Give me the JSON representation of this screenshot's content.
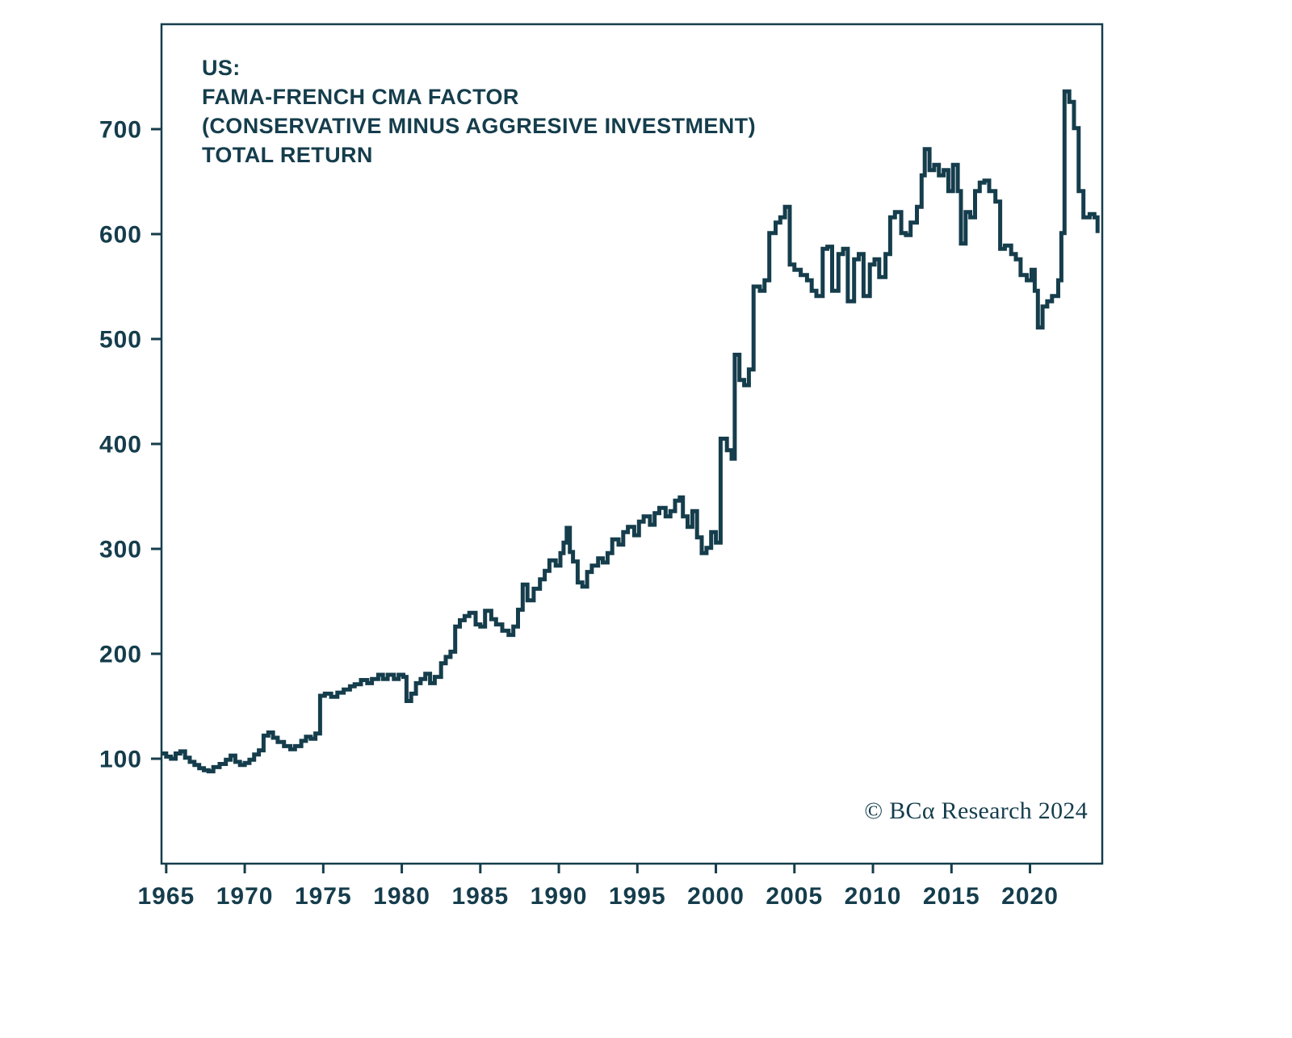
{
  "colors": {
    "ink": "#153d4c",
    "background": "#ffffff"
  },
  "title": {
    "lines": [
      "US:",
      "FAMA-FRENCH CMA FACTOR",
      "(CONSERVATIVE MINUS AGGRESIVE INVESTMENT)",
      "TOTAL RETURN"
    ]
  },
  "source": {
    "text": "© BCα Research 2024"
  },
  "chart_data": {
    "type": "line",
    "step": true,
    "title": "US: FAMA-FRENCH CMA FACTOR (CONSERVATIVE MINUS AGGRESIVE INVESTMENT) TOTAL RETURN",
    "xlabel": "",
    "ylabel": "",
    "legend": "none",
    "grid": false,
    "xlim": [
      1964.7,
      2024.6
    ],
    "ylim": [
      0,
      800
    ],
    "x_ticks": [
      1965,
      1970,
      1975,
      1980,
      1985,
      1990,
      1995,
      2000,
      2005,
      2010,
      2015,
      2020
    ],
    "y_ticks": [
      100,
      200,
      300,
      400,
      500,
      600,
      700
    ],
    "series": [
      {
        "name": "CMA factor total return",
        "points": [
          [
            1964.75,
            105
          ],
          [
            1965.0,
            102
          ],
          [
            1965.3,
            100
          ],
          [
            1965.6,
            105
          ],
          [
            1965.9,
            107
          ],
          [
            1966.2,
            101
          ],
          [
            1966.5,
            97
          ],
          [
            1966.8,
            94
          ],
          [
            1967.1,
            91
          ],
          [
            1967.4,
            89
          ],
          [
            1967.7,
            88
          ],
          [
            1968.0,
            92
          ],
          [
            1968.4,
            95
          ],
          [
            1968.8,
            99
          ],
          [
            1969.1,
            103
          ],
          [
            1969.4,
            97
          ],
          [
            1969.7,
            94
          ],
          [
            1970.0,
            96
          ],
          [
            1970.3,
            99
          ],
          [
            1970.6,
            104
          ],
          [
            1970.9,
            108
          ],
          [
            1971.2,
            122
          ],
          [
            1971.5,
            125
          ],
          [
            1971.8,
            120
          ],
          [
            1972.1,
            116
          ],
          [
            1972.5,
            112
          ],
          [
            1972.9,
            109
          ],
          [
            1973.2,
            112
          ],
          [
            1973.6,
            117
          ],
          [
            1973.9,
            121
          ],
          [
            1974.2,
            119
          ],
          [
            1974.5,
            124
          ],
          [
            1974.8,
            160
          ],
          [
            1975.1,
            162
          ],
          [
            1975.5,
            159
          ],
          [
            1975.9,
            163
          ],
          [
            1976.3,
            166
          ],
          [
            1976.7,
            169
          ],
          [
            1977.0,
            171
          ],
          [
            1977.4,
            175
          ],
          [
            1977.8,
            172
          ],
          [
            1978.1,
            176
          ],
          [
            1978.5,
            180
          ],
          [
            1978.8,
            176
          ],
          [
            1979.1,
            180
          ],
          [
            1979.5,
            176
          ],
          [
            1979.8,
            180
          ],
          [
            1980.1,
            178
          ],
          [
            1980.3,
            155
          ],
          [
            1980.6,
            162
          ],
          [
            1980.9,
            172
          ],
          [
            1981.2,
            176
          ],
          [
            1981.5,
            181
          ],
          [
            1981.8,
            172
          ],
          [
            1982.1,
            178
          ],
          [
            1982.5,
            191
          ],
          [
            1982.8,
            197
          ],
          [
            1983.1,
            202
          ],
          [
            1983.4,
            226
          ],
          [
            1983.7,
            232
          ],
          [
            1984.0,
            236
          ],
          [
            1984.3,
            239
          ],
          [
            1984.7,
            228
          ],
          [
            1985.0,
            226
          ],
          [
            1985.3,
            241
          ],
          [
            1985.7,
            233
          ],
          [
            1986.0,
            228
          ],
          [
            1986.4,
            222
          ],
          [
            1986.8,
            218
          ],
          [
            1987.1,
            226
          ],
          [
            1987.4,
            242
          ],
          [
            1987.7,
            266
          ],
          [
            1988.0,
            251
          ],
          [
            1988.4,
            262
          ],
          [
            1988.8,
            271
          ],
          [
            1989.1,
            279
          ],
          [
            1989.4,
            289
          ],
          [
            1989.8,
            284
          ],
          [
            1990.1,
            296
          ],
          [
            1990.3,
            306
          ],
          [
            1990.5,
            320
          ],
          [
            1990.7,
            297
          ],
          [
            1990.9,
            288
          ],
          [
            1991.2,
            268
          ],
          [
            1991.5,
            264
          ],
          [
            1991.8,
            278
          ],
          [
            1992.1,
            284
          ],
          [
            1992.5,
            291
          ],
          [
            1992.8,
            287
          ],
          [
            1993.1,
            296
          ],
          [
            1993.4,
            309
          ],
          [
            1993.8,
            304
          ],
          [
            1994.1,
            316
          ],
          [
            1994.4,
            321
          ],
          [
            1994.8,
            313
          ],
          [
            1995.1,
            326
          ],
          [
            1995.4,
            331
          ],
          [
            1995.8,
            323
          ],
          [
            1996.1,
            334
          ],
          [
            1996.4,
            339
          ],
          [
            1996.8,
            331
          ],
          [
            1997.1,
            336
          ],
          [
            1997.4,
            346
          ],
          [
            1997.7,
            349
          ],
          [
            1997.9,
            331
          ],
          [
            1998.2,
            321
          ],
          [
            1998.5,
            336
          ],
          [
            1998.8,
            311
          ],
          [
            1999.1,
            296
          ],
          [
            1999.4,
            301
          ],
          [
            1999.7,
            316
          ],
          [
            2000.0,
            306
          ],
          [
            2000.3,
            405
          ],
          [
            2000.7,
            394
          ],
          [
            2001.0,
            386
          ],
          [
            2001.2,
            485
          ],
          [
            2001.5,
            461
          ],
          [
            2001.8,
            456
          ],
          [
            2002.1,
            471
          ],
          [
            2002.4,
            550
          ],
          [
            2002.8,
            546
          ],
          [
            2003.1,
            556
          ],
          [
            2003.4,
            601
          ],
          [
            2003.8,
            611
          ],
          [
            2004.1,
            616
          ],
          [
            2004.4,
            626
          ],
          [
            2004.7,
            571
          ],
          [
            2005.0,
            566
          ],
          [
            2005.4,
            561
          ],
          [
            2005.8,
            556
          ],
          [
            2006.1,
            546
          ],
          [
            2006.4,
            541
          ],
          [
            2006.8,
            586
          ],
          [
            2007.1,
            588
          ],
          [
            2007.4,
            546
          ],
          [
            2007.8,
            581
          ],
          [
            2008.1,
            586
          ],
          [
            2008.4,
            536
          ],
          [
            2008.8,
            576
          ],
          [
            2009.1,
            581
          ],
          [
            2009.4,
            541
          ],
          [
            2009.8,
            571
          ],
          [
            2010.1,
            576
          ],
          [
            2010.4,
            559
          ],
          [
            2010.8,
            581
          ],
          [
            2011.1,
            616
          ],
          [
            2011.4,
            621
          ],
          [
            2011.8,
            601
          ],
          [
            2012.1,
            599
          ],
          [
            2012.4,
            611
          ],
          [
            2012.8,
            626
          ],
          [
            2013.1,
            656
          ],
          [
            2013.3,
            681
          ],
          [
            2013.6,
            661
          ],
          [
            2013.9,
            666
          ],
          [
            2014.2,
            656
          ],
          [
            2014.5,
            661
          ],
          [
            2014.8,
            641
          ],
          [
            2015.1,
            666
          ],
          [
            2015.4,
            641
          ],
          [
            2015.6,
            591
          ],
          [
            2015.9,
            621
          ],
          [
            2016.2,
            616
          ],
          [
            2016.5,
            641
          ],
          [
            2016.8,
            649
          ],
          [
            2017.1,
            651
          ],
          [
            2017.4,
            641
          ],
          [
            2017.8,
            631
          ],
          [
            2018.1,
            586
          ],
          [
            2018.4,
            589
          ],
          [
            2018.8,
            581
          ],
          [
            2019.1,
            576
          ],
          [
            2019.4,
            561
          ],
          [
            2019.8,
            556
          ],
          [
            2020.1,
            566
          ],
          [
            2020.3,
            546
          ],
          [
            2020.5,
            511
          ],
          [
            2020.8,
            531
          ],
          [
            2021.1,
            536
          ],
          [
            2021.4,
            541
          ],
          [
            2021.8,
            556
          ],
          [
            2022.0,
            601
          ],
          [
            2022.2,
            736
          ],
          [
            2022.5,
            726
          ],
          [
            2022.8,
            701
          ],
          [
            2023.1,
            641
          ],
          [
            2023.4,
            616
          ],
          [
            2023.8,
            619
          ],
          [
            2024.1,
            616
          ],
          [
            2024.3,
            601
          ]
        ]
      }
    ]
  }
}
